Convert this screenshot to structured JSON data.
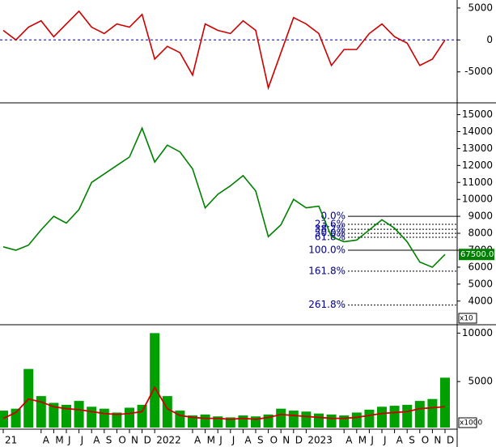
{
  "chart_data": [
    {
      "type": "line",
      "color": "#cc0000",
      "ref_color": "#00008b",
      "values": [
        1500,
        0,
        2000,
        3000,
        500,
        2500,
        4500,
        2000,
        1000,
        2500,
        2000,
        4000,
        -3000,
        -1000,
        -2000,
        -5500,
        2500,
        1500,
        1000,
        3000,
        1500,
        -7500,
        -2000,
        3500,
        2500,
        1000,
        -4000,
        -1500,
        -1500,
        1000,
        2500,
        500,
        -500,
        -4000,
        -3000,
        0
      ],
      "ylim": [
        -9600,
        6000
      ],
      "yticks": [
        5000,
        0,
        -5000
      ],
      "reference": 0
    },
    {
      "type": "line",
      "color": "#008000",
      "values": [
        7200,
        7000,
        7300,
        8200,
        9000,
        8600,
        9400,
        11000,
        11500,
        12000,
        12500,
        14200,
        12200,
        13200,
        12800,
        11800,
        9500,
        10300,
        10800,
        11400,
        10500,
        7800,
        8500,
        10000,
        9500,
        9600,
        7800,
        7500,
        7600,
        8200,
        8800,
        8300,
        7500,
        6300,
        6000,
        6750
      ],
      "ylim": [
        2700,
        15600
      ],
      "yticks": [
        4000,
        5000,
        6000,
        7000,
        8000,
        9000,
        10000,
        11000,
        12000,
        13000,
        14000,
        15000
      ],
      "fib_color": "#00008b",
      "fib_levels": [
        {
          "value": 9000,
          "label": "0.0%"
        },
        {
          "value": 8528,
          "label": "23.6%"
        },
        {
          "value": 8236,
          "label": "38.2%"
        },
        {
          "value": 8000,
          "label": "50.0%"
        },
        {
          "value": 7764,
          "label": "61.8%"
        },
        {
          "value": 7000,
          "label": "100.0%"
        },
        {
          "value": 5764,
          "label": "161.8%"
        },
        {
          "value": 3764,
          "label": "261.8%"
        }
      ],
      "last_label": "67500.0",
      "last_color": "#008000",
      "unit": "x10"
    },
    {
      "type": "bar",
      "color": "#00a000",
      "average_color": "#cc0000",
      "categories": [
        "21",
        null,
        null,
        "A",
        "M",
        "J",
        "J",
        "A",
        "S",
        "O",
        "N",
        "D",
        "2022",
        null,
        null,
        "A",
        "M",
        "J",
        "J",
        "A",
        "S",
        "O",
        "N",
        "D",
        "2023",
        null,
        null,
        "A",
        "M",
        "J",
        "J",
        "A",
        "S",
        "O",
        "N",
        "D"
      ],
      "values": [
        2000,
        2200,
        6300,
        3500,
        2800,
        2600,
        3000,
        2400,
        2200,
        1800,
        2300,
        2600,
        10000,
        3500,
        2000,
        1500,
        1600,
        1400,
        1300,
        1500,
        1400,
        1600,
        2200,
        2000,
        1900,
        1700,
        1600,
        1500,
        1800,
        2100,
        2400,
        2500,
        2600,
        3000,
        3200,
        5400
      ],
      "average": [
        1200,
        1800,
        3200,
        2900,
        2400,
        2200,
        2100,
        1900,
        1700,
        1600,
        1700,
        1900,
        4400,
        2200,
        1500,
        1300,
        1200,
        1200,
        1100,
        1200,
        1100,
        1300,
        1600,
        1500,
        1400,
        1300,
        1200,
        1200,
        1300,
        1500,
        1700,
        1800,
        1900,
        2200,
        2300,
        2400
      ],
      "ylim": [
        250,
        10700
      ],
      "yticks": [
        5000,
        10000
      ],
      "unit": "x1000"
    }
  ]
}
